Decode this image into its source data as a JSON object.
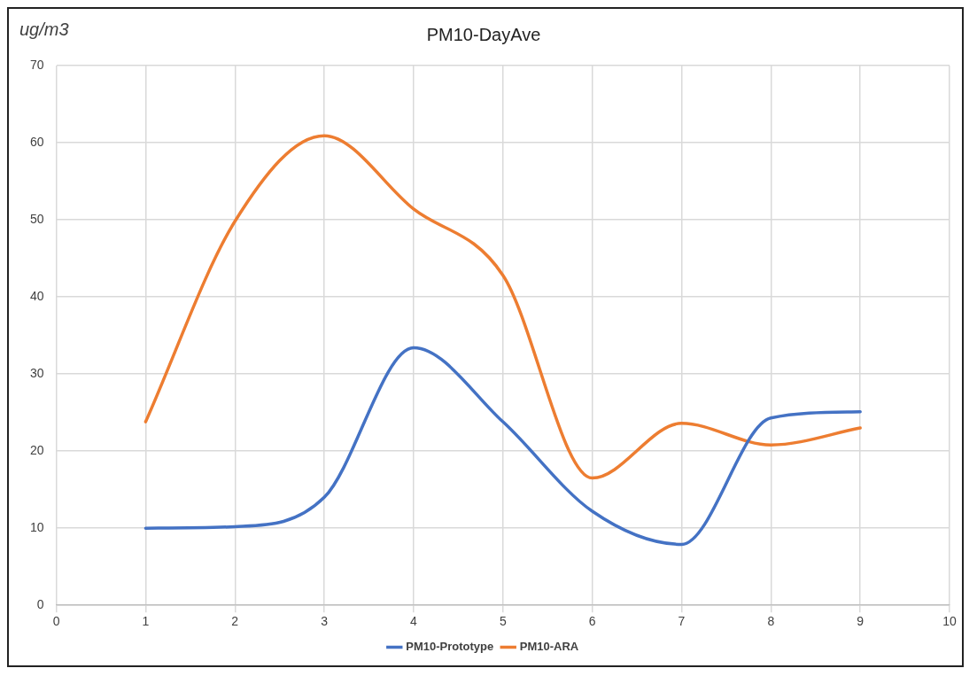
{
  "chart_data": {
    "type": "line",
    "title": "PM10-DayAve",
    "ylabel": "ug/m3",
    "x": [
      1,
      2,
      3,
      4,
      5,
      6,
      7,
      8,
      9
    ],
    "series": [
      {
        "name": "PM10-Prototype",
        "color": "#4472c4",
        "values": [
          10.0,
          10.2,
          14,
          33.4,
          23.8,
          12.2,
          7.9,
          24.3,
          25.1
        ]
      },
      {
        "name": "PM10-ARA",
        "color": "#ed7d31",
        "values": [
          23.8,
          49.8,
          60.9,
          51.4,
          42.8,
          16.5,
          23.6,
          20.8,
          23
        ]
      }
    ],
    "xlim": [
      0,
      10
    ],
    "xticks": [
      0,
      1,
      2,
      3,
      4,
      5,
      6,
      7,
      8,
      9,
      10
    ],
    "ylim": [
      0,
      70
    ],
    "yticks": [
      0,
      10,
      20,
      30,
      40,
      50,
      60,
      70
    ],
    "grid": true,
    "legend": "bottom",
    "marker": "none",
    "line_style": "solid"
  }
}
